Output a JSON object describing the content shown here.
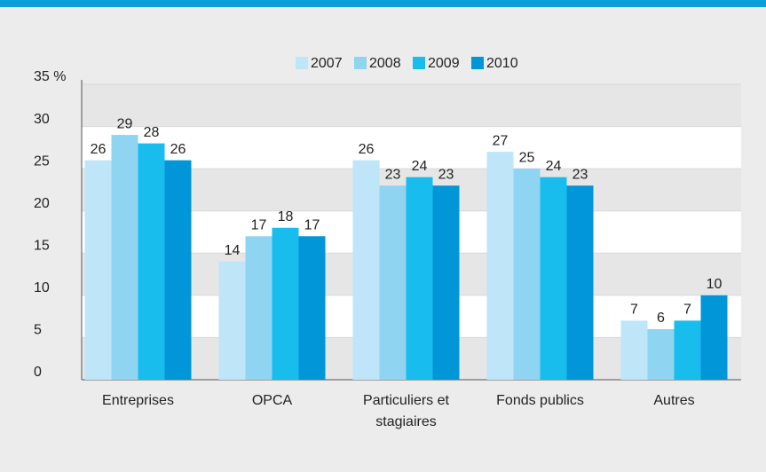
{
  "chart_data": {
    "type": "bar",
    "categories": [
      "Entreprises",
      "OPCA",
      "Particuliers et stagiaires",
      "Fonds publics",
      "Autres"
    ],
    "series": [
      {
        "name": "2007",
        "color": "#bee6f8",
        "values": [
          26,
          14,
          26,
          27,
          7
        ]
      },
      {
        "name": "2008",
        "color": "#8fd4f1",
        "values": [
          29,
          17,
          23,
          25,
          6
        ]
      },
      {
        "name": "2009",
        "color": "#18bdee",
        "values": [
          28,
          18,
          24,
          24,
          7
        ]
      },
      {
        "name": "2010",
        "color": "#0096d8",
        "values": [
          26,
          17,
          23,
          23,
          10
        ]
      }
    ],
    "ylim": [
      0,
      35
    ],
    "yticks": [
      0,
      5,
      10,
      15,
      20,
      25,
      30,
      {
        "value": 35,
        "label": "35 %"
      }
    ],
    "grid": true
  }
}
